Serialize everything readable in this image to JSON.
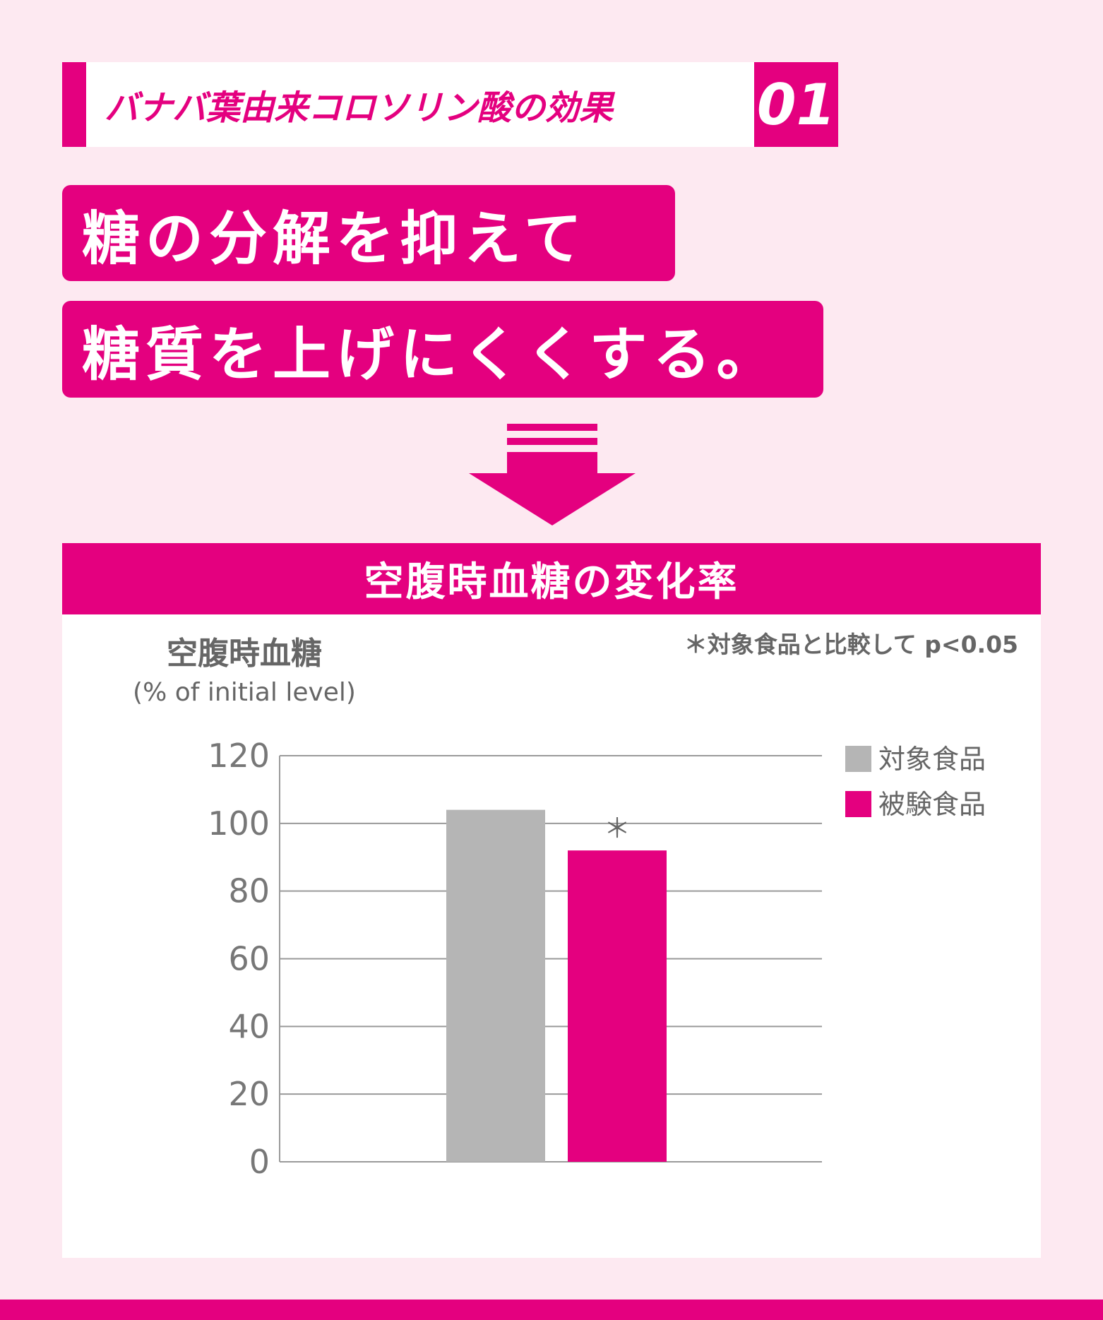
{
  "tag": {
    "label": "バナバ葉由来コロソリン酸の効果",
    "number": "01"
  },
  "headline": {
    "line1": "糖の分解を抑えて",
    "line2": "糖質を上げにくくする。"
  },
  "colors": {
    "accent": "#e4007f",
    "background": "#fde9f1",
    "gray_bar": "#b5b5b5",
    "text_gray": "#666666"
  },
  "chart_data": {
    "type": "bar",
    "title": "空腹時血糖の変化率",
    "ylabel": "空腹時血糖",
    "ylabel_sub": "(% of initial level)",
    "note": "＊対象食品と比較して p<0.05",
    "ylim": [
      0,
      120
    ],
    "yticks": [
      0,
      20,
      40,
      60,
      80,
      100,
      120
    ],
    "grid": true,
    "legend_position": "right",
    "series": [
      {
        "name": "対象食品",
        "value": 104,
        "color": "#b5b5b5",
        "marker": ""
      },
      {
        "name": "被験食品",
        "value": 92,
        "color": "#e4007f",
        "marker": "＊"
      }
    ]
  }
}
